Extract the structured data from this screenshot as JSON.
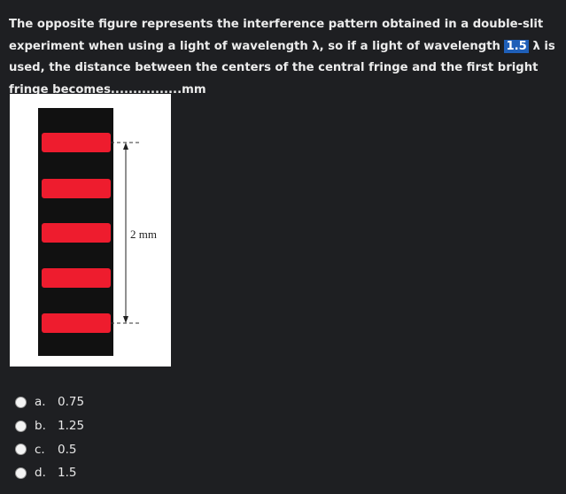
{
  "question": {
    "text_before": "The opposite figure represents the interference pattern obtained in a double-slit experiment when using a light of wavelength λ, so if a light of wavelength ",
    "highlight": "1.5",
    "text_after": " λ is used, the distance between the centers of the central fringe and the first bright fringe becomes................mm"
  },
  "figure": {
    "measure_label": "2 mm",
    "fringe_color": "#ee1c2e",
    "background_color": "#111111"
  },
  "answers": [
    {
      "letter": "a.",
      "value": "0.75"
    },
    {
      "letter": "b.",
      "value": "1.25"
    },
    {
      "letter": "c.",
      "value": "0.5"
    },
    {
      "letter": "d.",
      "value": "1.5"
    }
  ]
}
